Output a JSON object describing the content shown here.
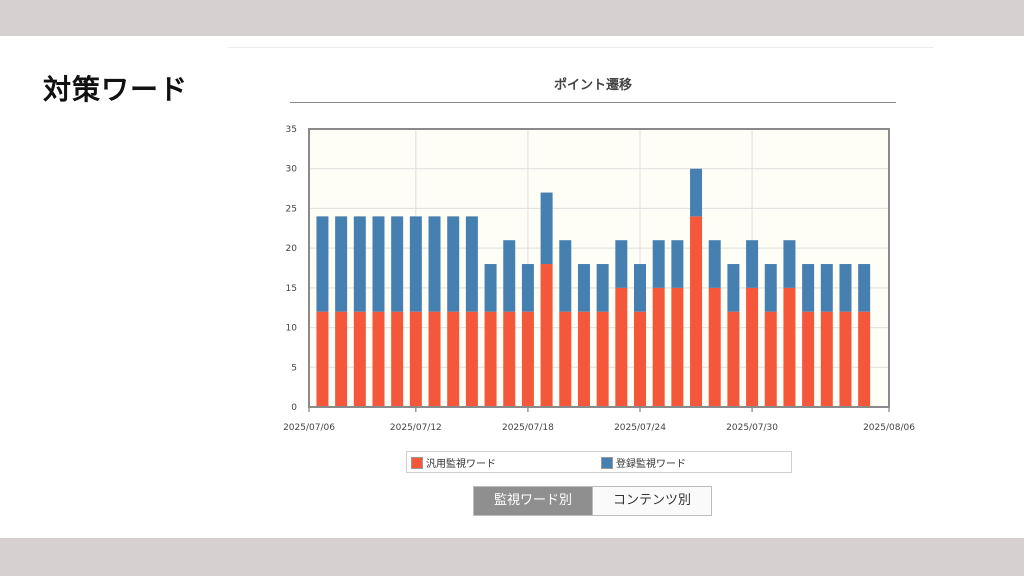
{
  "slide": {
    "title": "対策ワード"
  },
  "chart_data": {
    "type": "bar",
    "stacked": true,
    "title": "ポイント遷移",
    "xlabel": "",
    "ylabel": "",
    "ylim": [
      0,
      35
    ],
    "y_ticks": [
      0,
      5,
      10,
      15,
      20,
      25,
      30,
      35
    ],
    "x_tick_labels": [
      "2025/07/06",
      "2025/07/12",
      "2025/07/18",
      "2025/07/24",
      "2025/07/30",
      "2025/08/06"
    ],
    "categories": [
      "2025/07/07",
      "2025/07/08",
      "2025/07/09",
      "2025/07/10",
      "2025/07/11",
      "2025/07/12",
      "2025/07/13",
      "2025/07/14",
      "2025/07/15",
      "2025/07/16",
      "2025/07/17",
      "2025/07/18",
      "2025/07/19",
      "2025/07/20",
      "2025/07/21",
      "2025/07/22",
      "2025/07/23",
      "2025/07/24",
      "2025/07/25",
      "2025/07/26",
      "2025/07/27",
      "2025/07/28",
      "2025/07/29",
      "2025/07/30",
      "2025/07/31",
      "2025/08/01",
      "2025/08/02",
      "2025/08/03",
      "2025/08/04",
      "2025/08/05"
    ],
    "series": [
      {
        "name": "汎用監視ワード",
        "color": "#f5573b",
        "values": [
          12,
          12,
          12,
          12,
          12,
          12,
          12,
          12,
          12,
          12,
          12,
          12,
          18,
          12,
          12,
          12,
          15,
          12,
          15,
          15,
          24,
          15,
          12,
          15,
          12,
          15,
          12,
          12,
          12,
          12
        ]
      },
      {
        "name": "登録監視ワード",
        "color": "#4680b0",
        "values": [
          12,
          12,
          12,
          12,
          12,
          12,
          12,
          12,
          12,
          6,
          9,
          6,
          9,
          9,
          6,
          6,
          6,
          6,
          6,
          6,
          6,
          6,
          6,
          6,
          6,
          6,
          6,
          6,
          6,
          6
        ]
      }
    ],
    "grid": true,
    "legend": "bottom"
  },
  "toggle": {
    "active_label": "監視ワード別",
    "inactive_label": "コンテンツ別"
  }
}
